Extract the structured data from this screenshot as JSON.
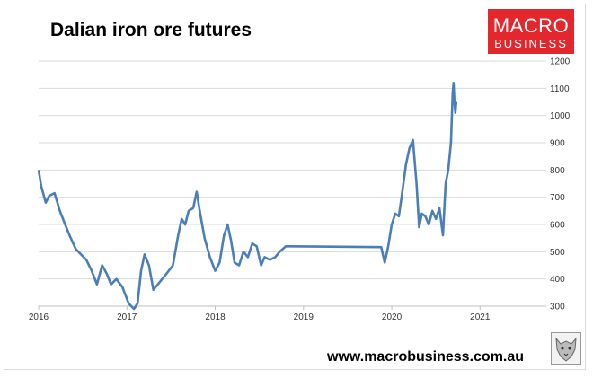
{
  "header": {
    "title": "Dalian iron ore futures",
    "logo_line1": "MACRO",
    "logo_line2": "BUSINESS",
    "website": "www.macrobusiness.com.au",
    "wolf_icon": "wolf-logo-icon"
  },
  "colors": {
    "line": "#4a7ebb",
    "logo_bg": "#e3272d",
    "grid": "#d9d9d9"
  },
  "chart_data": {
    "type": "line",
    "title": "Dalian iron ore futures",
    "xlabel": "",
    "ylabel": "",
    "xlim": [
      2016.0,
      2021.75
    ],
    "ylim": [
      300,
      1200
    ],
    "grid": "horizontal",
    "x_ticks": [
      "2016",
      "2017",
      "2018",
      "2019",
      "2020",
      "2021"
    ],
    "y_ticks": [
      "300",
      "400",
      "500",
      "600",
      "700",
      "800",
      "900",
      "1000",
      "1100",
      "1200"
    ],
    "y_axis_position": "right",
    "series": [
      {
        "values": [
          [
            2016.0,
            800
          ],
          [
            2016.03,
            740
          ],
          [
            2016.08,
            680
          ],
          [
            2016.12,
            705
          ],
          [
            2016.18,
            715
          ],
          [
            2016.24,
            650
          ],
          [
            2016.3,
            600
          ],
          [
            2016.35,
            560
          ],
          [
            2016.42,
            510
          ],
          [
            2016.48,
            490
          ],
          [
            2016.54,
            470
          ],
          [
            2016.6,
            430
          ],
          [
            2016.66,
            380
          ],
          [
            2016.72,
            450
          ],
          [
            2016.77,
            420
          ],
          [
            2016.82,
            380
          ],
          [
            2016.88,
            400
          ],
          [
            2016.95,
            370
          ],
          [
            2017.02,
            310
          ],
          [
            2017.08,
            290
          ],
          [
            2017.12,
            310
          ],
          [
            2017.16,
            430
          ],
          [
            2017.2,
            490
          ],
          [
            2017.25,
            450
          ],
          [
            2017.3,
            360
          ],
          [
            2017.35,
            380
          ],
          [
            2017.4,
            400
          ],
          [
            2017.45,
            420
          ],
          [
            2017.52,
            450
          ],
          [
            2017.58,
            560
          ],
          [
            2017.62,
            620
          ],
          [
            2017.66,
            600
          ],
          [
            2017.7,
            650
          ],
          [
            2017.75,
            660
          ],
          [
            2017.79,
            720
          ],
          [
            2017.83,
            640
          ],
          [
            2017.88,
            550
          ],
          [
            2017.94,
            480
          ],
          [
            2018.0,
            430
          ],
          [
            2018.05,
            460
          ],
          [
            2018.1,
            560
          ],
          [
            2018.14,
            600
          ],
          [
            2018.18,
            540
          ],
          [
            2018.22,
            460
          ],
          [
            2018.27,
            450
          ],
          [
            2018.32,
            500
          ],
          [
            2018.37,
            480
          ],
          [
            2018.42,
            530
          ],
          [
            2018.47,
            520
          ],
          [
            2018.52,
            450
          ],
          [
            2018.56,
            480
          ],
          [
            2018.62,
            470
          ],
          [
            2018.68,
            480
          ],
          [
            2018.73,
            500
          ],
          [
            2018.8,
            520
          ],
          [
            2018.85,
            520
          ],
          [
            2019.88,
            517
          ],
          [
            2019.92,
            460
          ],
          [
            2019.96,
            520
          ],
          [
            2020.0,
            600
          ],
          [
            2020.04,
            640
          ],
          [
            2020.08,
            630
          ],
          [
            2020.12,
            720
          ],
          [
            2020.16,
            820
          ],
          [
            2020.2,
            880
          ],
          [
            2020.24,
            910
          ],
          [
            2020.28,
            750
          ],
          [
            2020.31,
            590
          ],
          [
            2020.34,
            640
          ],
          [
            2020.38,
            630
          ],
          [
            2020.42,
            600
          ],
          [
            2020.46,
            650
          ],
          [
            2020.5,
            620
          ],
          [
            2020.54,
            660
          ],
          [
            2020.58,
            560
          ],
          [
            2020.61,
            750
          ],
          [
            2020.64,
            800
          ],
          [
            2020.67,
            900
          ],
          [
            2020.69,
            1080
          ],
          [
            2020.7,
            1120
          ],
          [
            2020.71,
            1050
          ],
          [
            2020.72,
            1010
          ],
          [
            2020.73,
            1050
          ]
        ]
      }
    ]
  }
}
